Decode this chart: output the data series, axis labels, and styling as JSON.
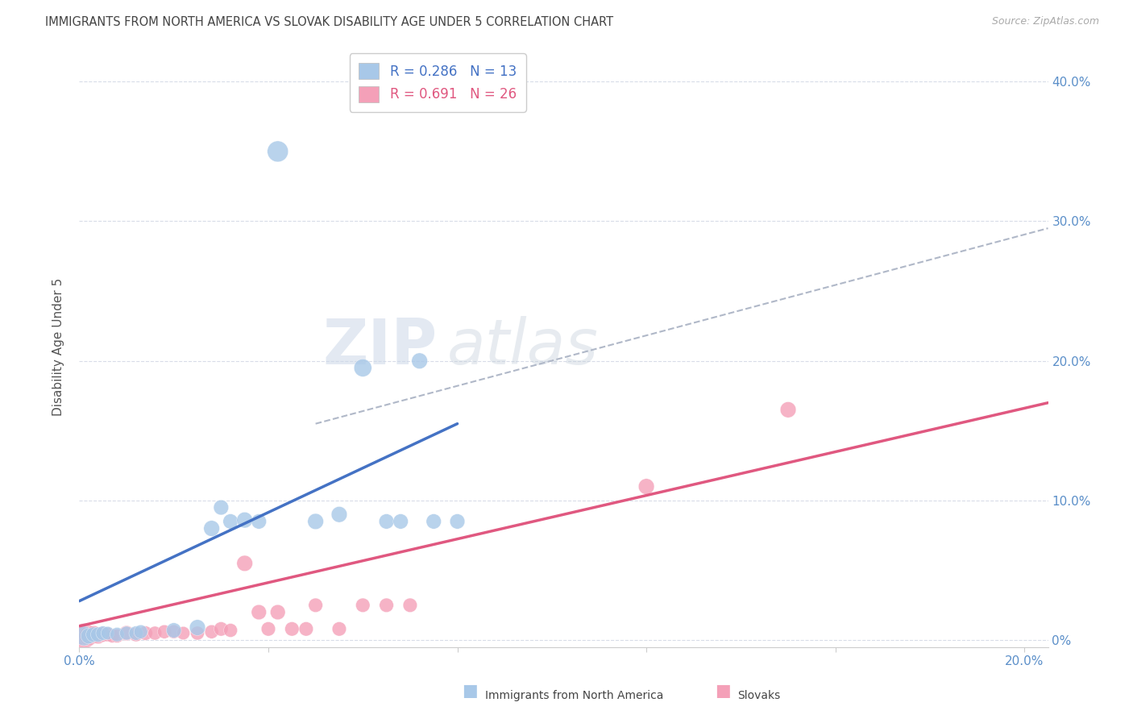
{
  "title": "IMMIGRANTS FROM NORTH AMERICA VS SLOVAK DISABILITY AGE UNDER 5 CORRELATION CHART",
  "source": "Source: ZipAtlas.com",
  "ylabel": "Disability Age Under 5",
  "xlim": [
    0.0,
    0.205
  ],
  "ylim": [
    -0.005,
    0.425
  ],
  "x_ticks": [
    0.0,
    0.04,
    0.08,
    0.12,
    0.16,
    0.2
  ],
  "y_ticks": [
    0.0,
    0.1,
    0.2,
    0.3,
    0.4
  ],
  "y_tick_labels_right": [
    "0%",
    "10.0%",
    "20.0%",
    "30.0%",
    "40.0%"
  ],
  "blue_color": "#a8c8e8",
  "blue_line_color": "#4472c4",
  "pink_color": "#f4a0b8",
  "pink_line_color": "#e05880",
  "dashed_line_color": "#b0b8c8",
  "background_color": "#ffffff",
  "grid_color": "#d8dce8",
  "right_tick_color": "#5b8fc9",
  "title_color": "#444444",
  "source_color": "#aaaaaa",
  "blue_scatter_x": [
    0.001,
    0.002,
    0.003,
    0.004,
    0.005,
    0.006,
    0.008,
    0.01,
    0.012,
    0.013,
    0.02,
    0.025,
    0.028,
    0.03,
    0.032,
    0.035,
    0.038,
    0.042,
    0.05,
    0.055,
    0.06,
    0.065,
    0.068,
    0.072,
    0.075,
    0.08
  ],
  "blue_scatter_y": [
    0.003,
    0.003,
    0.004,
    0.004,
    0.005,
    0.005,
    0.004,
    0.005,
    0.005,
    0.006,
    0.007,
    0.009,
    0.08,
    0.095,
    0.085,
    0.086,
    0.085,
    0.35,
    0.085,
    0.09,
    0.195,
    0.085,
    0.085,
    0.2,
    0.085,
    0.085
  ],
  "blue_scatter_size": [
    300,
    200,
    180,
    180,
    160,
    140,
    160,
    150,
    160,
    150,
    180,
    200,
    200,
    180,
    180,
    200,
    180,
    350,
    200,
    200,
    250,
    180,
    180,
    200,
    180,
    180
  ],
  "pink_scatter_x": [
    0.001,
    0.002,
    0.003,
    0.004,
    0.005,
    0.006,
    0.007,
    0.008,
    0.01,
    0.012,
    0.014,
    0.016,
    0.018,
    0.02,
    0.022,
    0.025,
    0.028,
    0.03,
    0.032,
    0.035,
    0.038,
    0.04,
    0.042,
    0.045,
    0.048,
    0.05,
    0.055,
    0.06,
    0.065,
    0.07,
    0.12,
    0.15
  ],
  "pink_scatter_y": [
    0.003,
    0.003,
    0.004,
    0.003,
    0.004,
    0.004,
    0.003,
    0.003,
    0.005,
    0.004,
    0.005,
    0.005,
    0.006,
    0.006,
    0.005,
    0.005,
    0.006,
    0.008,
    0.007,
    0.055,
    0.02,
    0.008,
    0.02,
    0.008,
    0.008,
    0.025,
    0.008,
    0.025,
    0.025,
    0.025,
    0.11,
    0.165
  ],
  "pink_scatter_size": [
    500,
    300,
    250,
    200,
    180,
    160,
    150,
    150,
    180,
    160,
    160,
    150,
    150,
    150,
    140,
    150,
    150,
    160,
    150,
    200,
    180,
    160,
    180,
    160,
    160,
    160,
    160,
    160,
    160,
    160,
    200,
    200
  ],
  "blue_line_x0": 0.0,
  "blue_line_x1": 0.08,
  "blue_line_y0": 0.028,
  "blue_line_y1": 0.155,
  "pink_line_x0": 0.0,
  "pink_line_x1": 0.205,
  "pink_line_y0": 0.01,
  "pink_line_y1": 0.17,
  "dashed_line_x0": 0.05,
  "dashed_line_x1": 0.205,
  "dashed_line_y0": 0.155,
  "dashed_line_y1": 0.295
}
